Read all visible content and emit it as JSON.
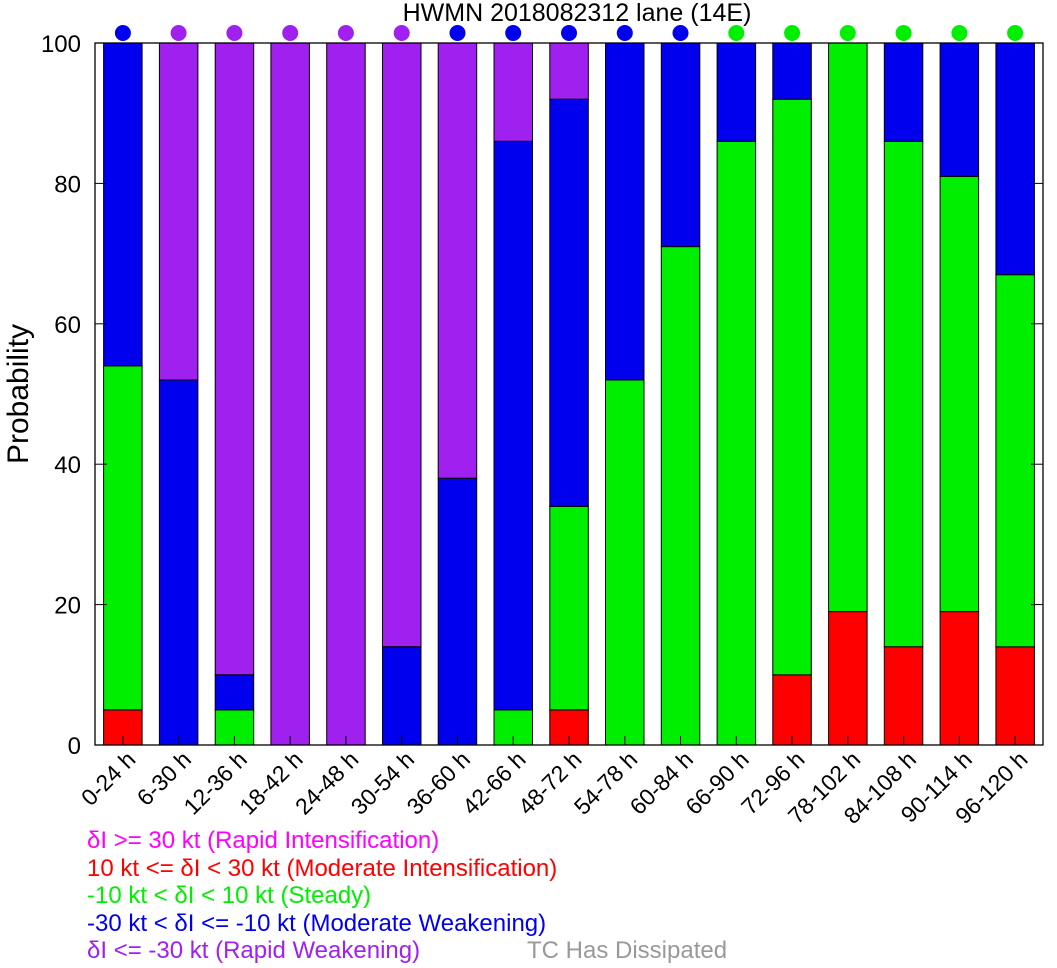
{
  "chart_data": {
    "type": "bar",
    "stacked": true,
    "title": "HWMN 2018082312 lane (14E)",
    "xlabel": "",
    "ylabel": "Probability",
    "ylim": [
      0,
      100
    ],
    "yticks": [
      0,
      20,
      40,
      60,
      80,
      100
    ],
    "categories": [
      "0-24 h",
      "6-30 h",
      "12-36 h",
      "18-42 h",
      "24-48 h",
      "30-54 h",
      "36-60 h",
      "42-66 h",
      "48-72 h",
      "54-78 h",
      "60-84 h",
      "66-90 h",
      "72-96 h",
      "78-102 h",
      "84-108 h",
      "90-114 h",
      "96-120 h"
    ],
    "series": [
      {
        "key": "RI",
        "color": "#ff00ff",
        "values": [
          0,
          0,
          0,
          0,
          0,
          0,
          0,
          0,
          0,
          0,
          0,
          0,
          0,
          0,
          0,
          0,
          0
        ]
      },
      {
        "key": "MI",
        "color": "#ff0000",
        "values": [
          5,
          0,
          0,
          0,
          0,
          0,
          0,
          0,
          5,
          0,
          0,
          0,
          10,
          19,
          14,
          19,
          14
        ]
      },
      {
        "key": "ST",
        "color": "#00ee00",
        "values": [
          49,
          0,
          5,
          0,
          0,
          0,
          0,
          5,
          29,
          52,
          71,
          86,
          82,
          81,
          72,
          62,
          53
        ]
      },
      {
        "key": "MW",
        "color": "#0000ee",
        "values": [
          46,
          52,
          5,
          0,
          0,
          14,
          38,
          81,
          58,
          48,
          29,
          14,
          8,
          0,
          14,
          19,
          33
        ]
      },
      {
        "key": "RW",
        "color": "#a020f0",
        "values": [
          0,
          48,
          90,
          100,
          100,
          86,
          62,
          14,
          8,
          0,
          0,
          0,
          0,
          0,
          0,
          0,
          0
        ]
      }
    ],
    "indicator_colors": [
      "#0000ee",
      "#a020f0",
      "#a020f0",
      "#a020f0",
      "#a020f0",
      "#a020f0",
      "#0000ee",
      "#0000ee",
      "#0000ee",
      "#0000ee",
      "#0000ee",
      "#00ee00",
      "#00ee00",
      "#00ee00",
      "#00ee00",
      "#00ee00",
      "#00ee00"
    ],
    "grid": false,
    "legend_position": "bottom-left"
  },
  "legend": {
    "items": [
      {
        "text": "δI >= 30 kt (Rapid Intensification)",
        "color": "#ff00ff"
      },
      {
        "text": "10 kt <= δI < 30 kt (Moderate Intensification)",
        "color": "#ff0000"
      },
      {
        "text": "-10 kt < δI < 10 kt (Steady)",
        "color": "#00ee00"
      },
      {
        "text": "-30 kt < δI <= -10 kt (Moderate Weakening)",
        "color": "#0000ee"
      },
      {
        "text": "δI <= -30 kt (Rapid Weakening)",
        "color": "#a020f0"
      }
    ],
    "dissipated": {
      "text": "TC Has Dissipated",
      "color": "#999999"
    }
  }
}
